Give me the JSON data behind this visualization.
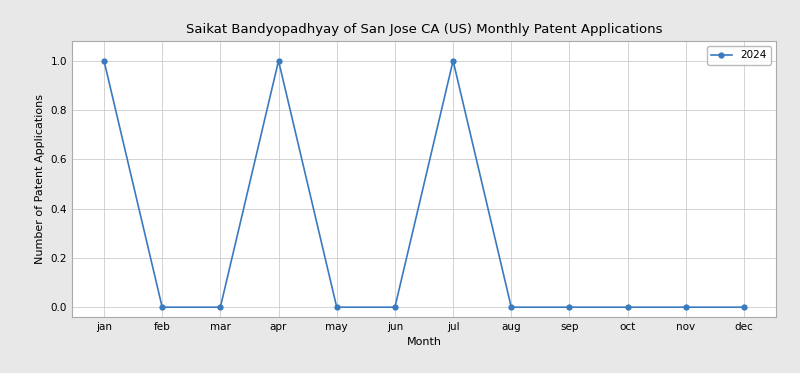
{
  "title": "Saikat Bandyopadhyay of San Jose CA (US) Monthly Patent Applications",
  "xlabel": "Month",
  "ylabel": "Number of Patent Applications",
  "months": [
    "jan",
    "feb",
    "mar",
    "apr",
    "may",
    "jun",
    "jul",
    "aug",
    "sep",
    "oct",
    "nov",
    "dec"
  ],
  "values_2024": [
    1,
    0,
    0,
    1,
    0,
    0,
    1,
    0,
    0,
    0,
    0,
    0
  ],
  "legend_label": "2024",
  "line_color": "#3a7abf",
  "marker": "o",
  "ylim": [
    -0.04,
    1.08
  ],
  "title_fontsize": 9.5,
  "label_fontsize": 8,
  "tick_fontsize": 7.5,
  "legend_fontsize": 7.5,
  "grid": true,
  "plot_bg_color": "#ffffff",
  "fig_bg_color": "#e8e8e8",
  "grid_color": "#cccccc",
  "markersize": 3.5,
  "linewidth": 1.2
}
